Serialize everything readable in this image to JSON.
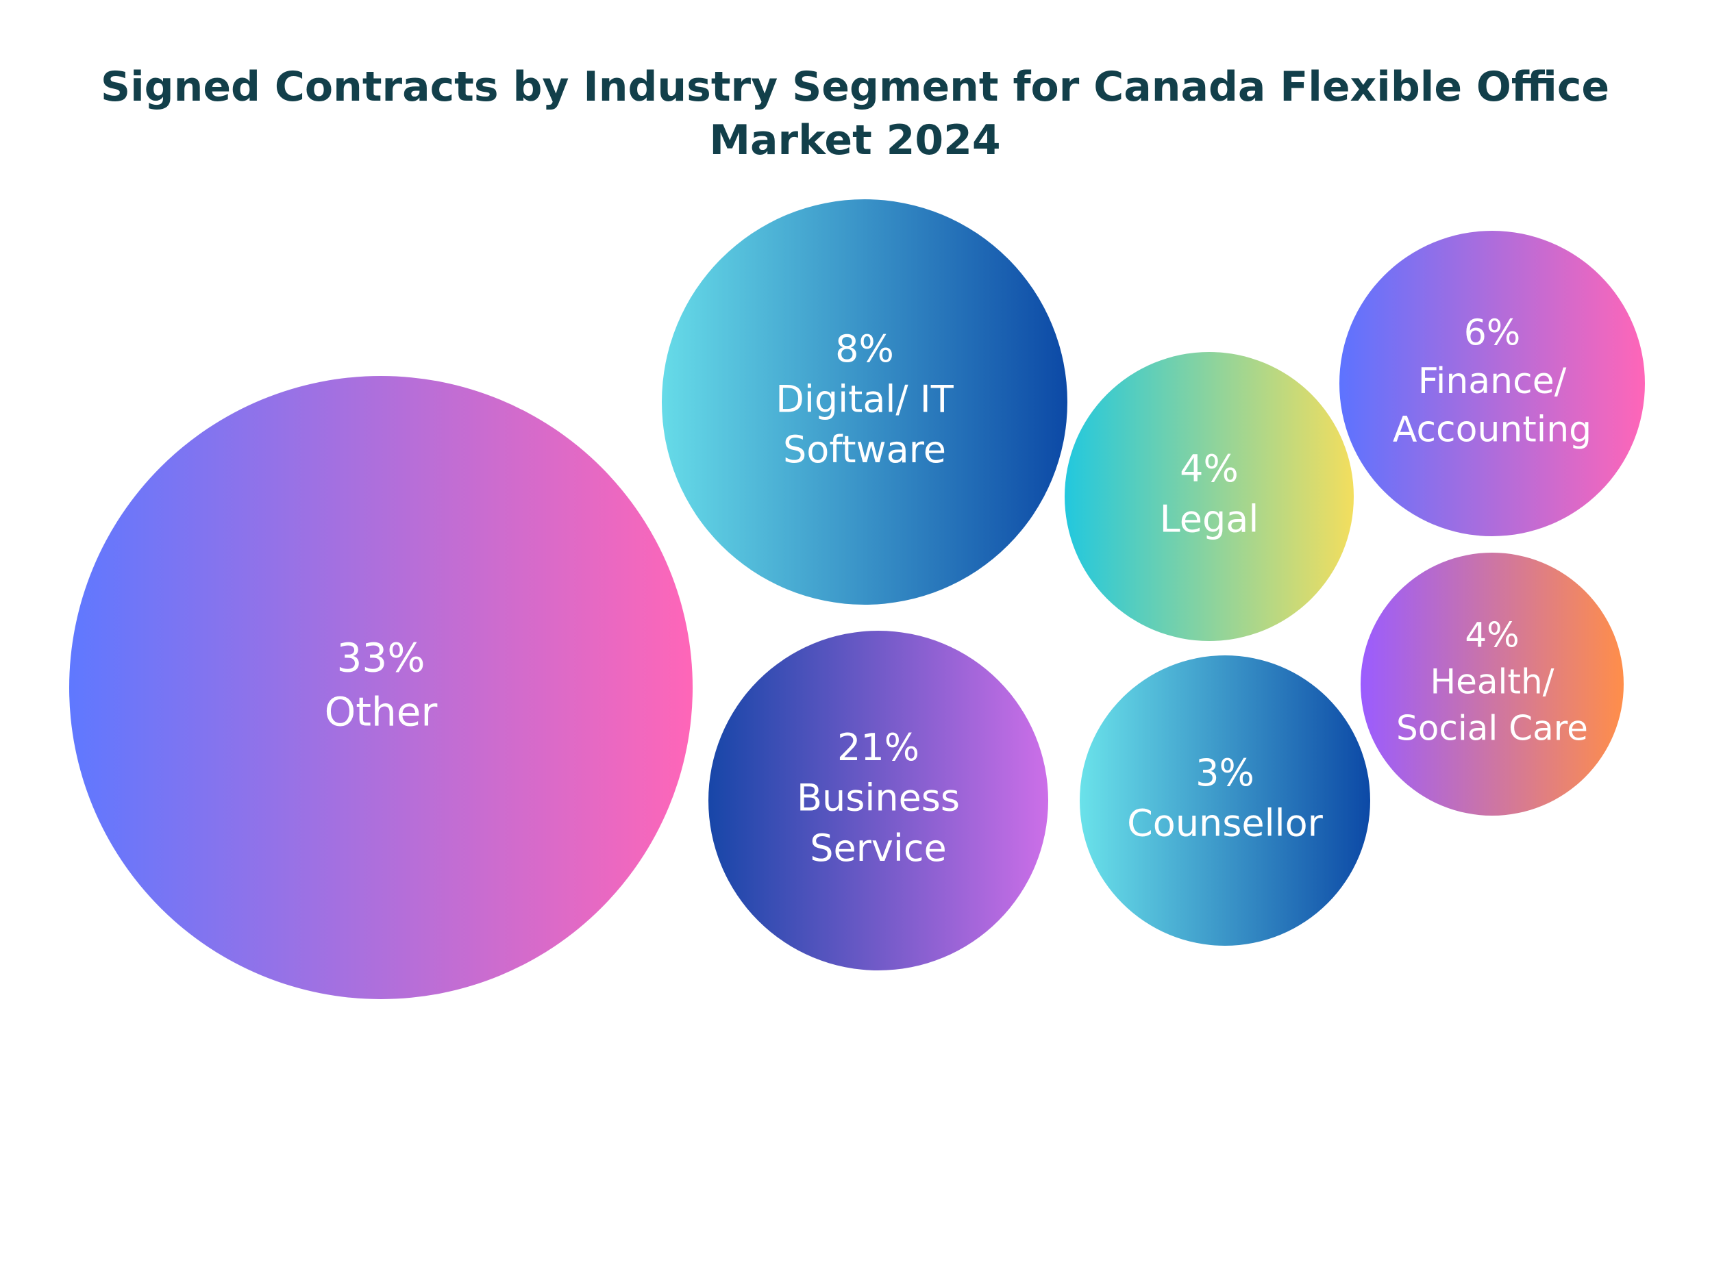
{
  "chart_data": {
    "type": "bubble",
    "title": "Signed Contracts by Industry Segment for Canada Flexible Office Market 2024",
    "unit": "%",
    "bubbles": [
      {
        "id": "other",
        "percent": 33,
        "value_label": "33%",
        "category_lines": [
          "Other"
        ],
        "gradient": [
          "#5f78ff",
          "#ff66b8"
        ]
      },
      {
        "id": "digital-it-software",
        "percent": 8,
        "value_label": "8%",
        "category_lines": [
          "Digital/ IT",
          "Software"
        ],
        "gradient": [
          "#66dbe8",
          "#0c49a6"
        ]
      },
      {
        "id": "business-service",
        "percent": 21,
        "value_label": "21%",
        "category_lines": [
          "Business",
          "Service"
        ],
        "gradient": [
          "#1746a8",
          "#cc6fe8"
        ]
      },
      {
        "id": "legal",
        "percent": 4,
        "value_label": "4%",
        "category_lines": [
          "Legal"
        ],
        "gradient": [
          "#22c8de",
          "#f3de5e"
        ]
      },
      {
        "id": "counsellor",
        "percent": 3,
        "value_label": "3%",
        "category_lines": [
          "Counsellor"
        ],
        "gradient": [
          "#6ae2ea",
          "#0c49a6"
        ]
      },
      {
        "id": "finance-accounting",
        "percent": 6,
        "value_label": "6%",
        "category_lines": [
          "Finance/",
          "Accounting"
        ],
        "gradient": [
          "#5d73ff",
          "#ff66b8"
        ]
      },
      {
        "id": "health-social-care",
        "percent": 4,
        "value_label": "4%",
        "category_lines": [
          "Health/",
          "Social Care"
        ],
        "gradient": [
          "#9a5cff",
          "#ff8e4a"
        ]
      }
    ]
  }
}
